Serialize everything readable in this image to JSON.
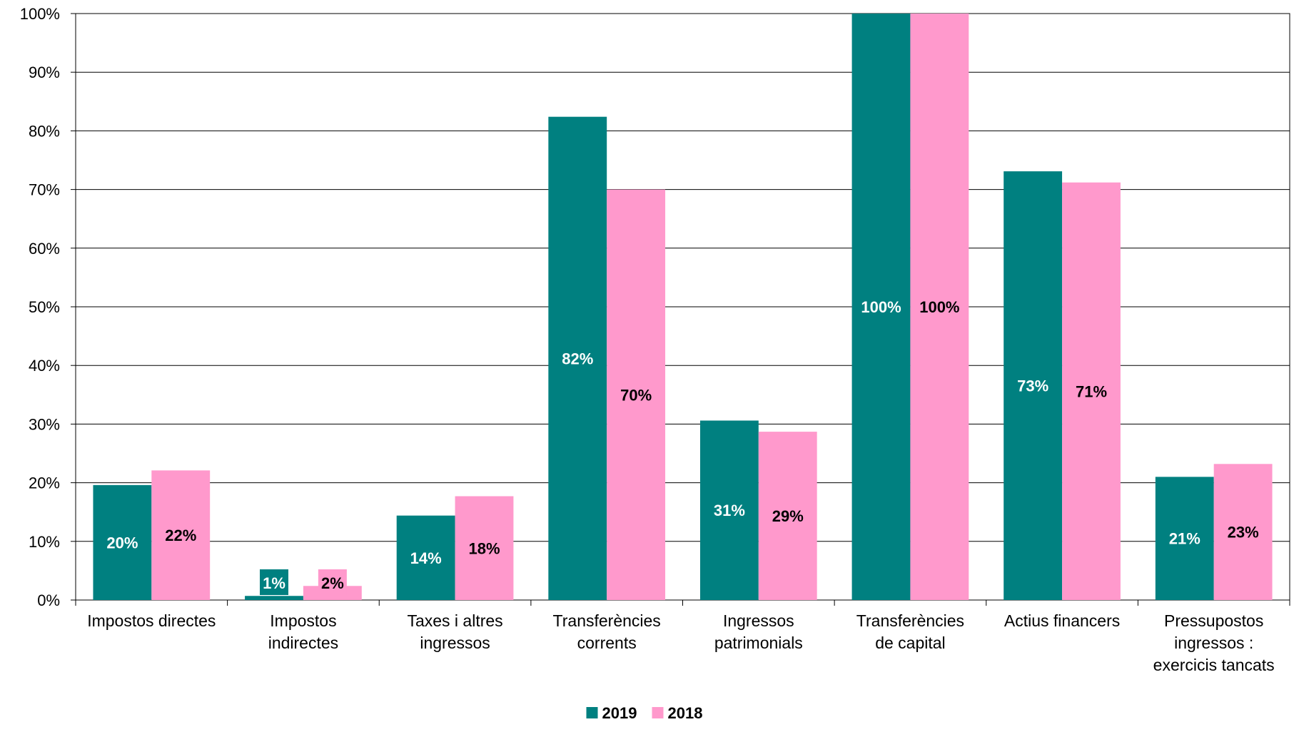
{
  "chart_data": {
    "type": "bar",
    "categories": [
      [
        "Impostos directes"
      ],
      [
        "Impostos",
        "indirectes"
      ],
      [
        "Taxes i altres",
        "ingressos"
      ],
      [
        "Transferències",
        "corrents"
      ],
      [
        "Ingressos",
        "patrimonials"
      ],
      [
        "Transferències",
        "de capital"
      ],
      [
        "Actius financers"
      ],
      [
        "Pressupostos",
        "ingressos :",
        "exercicis tancats"
      ]
    ],
    "series": [
      {
        "name": "2019",
        "color": "#008080",
        "label_color": "#ffffff",
        "values": [
          19.6,
          0.7,
          14.4,
          82.4,
          30.6,
          100,
          73.1,
          21.0
        ],
        "labels": [
          "20%",
          "1%",
          "14%",
          "82%",
          "31%",
          "100%",
          "73%",
          "21%"
        ]
      },
      {
        "name": "2018",
        "color": "#ff99cc",
        "label_color": "#000000",
        "values": [
          22.1,
          2.4,
          17.7,
          70.0,
          28.7,
          100,
          71.2,
          23.2
        ],
        "labels": [
          "22%",
          "2%",
          "18%",
          "70%",
          "29%",
          "100%",
          "71%",
          "23%"
        ]
      }
    ],
    "y_ticks": [
      "0%",
      "10%",
      "20%",
      "30%",
      "40%",
      "50%",
      "60%",
      "70%",
      "80%",
      "90%",
      "100%"
    ],
    "ylim": [
      0,
      100
    ],
    "grid": true,
    "legend_position": "bottom",
    "title": "",
    "xlabel": "",
    "ylabel": ""
  }
}
